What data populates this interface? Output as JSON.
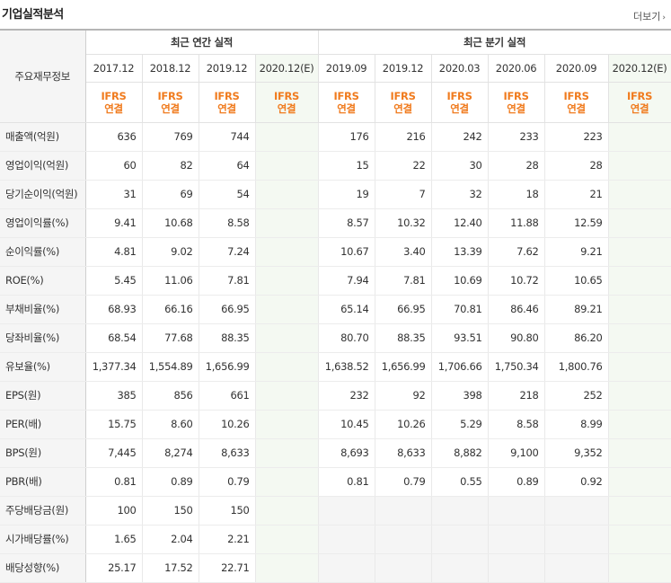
{
  "header": {
    "title": "기업실적분석",
    "more_label": "더보기"
  },
  "columns": {
    "row_header_label": "주요재무정보",
    "annual_group_label": "최근 연간 실적",
    "quarterly_group_label": "최근 분기 실적",
    "annual_periods": [
      "2017.12",
      "2018.12",
      "2019.12",
      "2020.12(E)"
    ],
    "quarterly_periods": [
      "2019.09",
      "2019.12",
      "2020.03",
      "2020.06",
      "2020.09",
      "2020.12(E)"
    ],
    "basis_line1": "IFRS",
    "basis_line2": "연결"
  },
  "rows": [
    {
      "label": "매출액(억원)",
      "annual": [
        "636",
        "769",
        "744",
        ""
      ],
      "quarterly": [
        "176",
        "216",
        "242",
        "233",
        "223",
        ""
      ]
    },
    {
      "label": "영업이익(억원)",
      "annual": [
        "60",
        "82",
        "64",
        ""
      ],
      "quarterly": [
        "15",
        "22",
        "30",
        "28",
        "28",
        ""
      ]
    },
    {
      "label": "당기순이익(억원)",
      "annual": [
        "31",
        "69",
        "54",
        ""
      ],
      "quarterly": [
        "19",
        "7",
        "32",
        "18",
        "21",
        ""
      ]
    },
    {
      "label": "영업이익률(%)",
      "annual": [
        "9.41",
        "10.68",
        "8.58",
        ""
      ],
      "quarterly": [
        "8.57",
        "10.32",
        "12.40",
        "11.88",
        "12.59",
        ""
      ]
    },
    {
      "label": "순이익률(%)",
      "annual": [
        "4.81",
        "9.02",
        "7.24",
        ""
      ],
      "quarterly": [
        "10.67",
        "3.40",
        "13.39",
        "7.62",
        "9.21",
        ""
      ]
    },
    {
      "label": "ROE(%)",
      "annual": [
        "5.45",
        "11.06",
        "7.81",
        ""
      ],
      "quarterly": [
        "7.94",
        "7.81",
        "10.69",
        "10.72",
        "10.65",
        ""
      ]
    },
    {
      "label": "부채비율(%)",
      "annual": [
        "68.93",
        "66.16",
        "66.95",
        ""
      ],
      "quarterly": [
        "65.14",
        "66.95",
        "70.81",
        "86.46",
        "89.21",
        ""
      ]
    },
    {
      "label": "당좌비율(%)",
      "annual": [
        "68.54",
        "77.68",
        "88.35",
        ""
      ],
      "quarterly": [
        "80.70",
        "88.35",
        "93.51",
        "90.80",
        "86.20",
        ""
      ]
    },
    {
      "label": "유보율(%)",
      "annual": [
        "1,377.34",
        "1,554.89",
        "1,656.99",
        ""
      ],
      "quarterly": [
        "1,638.52",
        "1,656.99",
        "1,706.66",
        "1,750.34",
        "1,800.76",
        ""
      ]
    },
    {
      "label": "EPS(원)",
      "annual": [
        "385",
        "856",
        "661",
        ""
      ],
      "quarterly": [
        "232",
        "92",
        "398",
        "218",
        "252",
        ""
      ]
    },
    {
      "label": "PER(배)",
      "annual": [
        "15.75",
        "8.60",
        "10.26",
        ""
      ],
      "quarterly": [
        "10.45",
        "10.26",
        "5.29",
        "8.58",
        "8.99",
        ""
      ]
    },
    {
      "label": "BPS(원)",
      "annual": [
        "7,445",
        "8,274",
        "8,633",
        ""
      ],
      "quarterly": [
        "8,693",
        "8,633",
        "8,882",
        "9,100",
        "9,352",
        ""
      ]
    },
    {
      "label": "PBR(배)",
      "annual": [
        "0.81",
        "0.89",
        "0.79",
        ""
      ],
      "quarterly": [
        "0.81",
        "0.79",
        "0.55",
        "0.89",
        "0.92",
        ""
      ]
    },
    {
      "label": "주당배당금(원)",
      "annual": [
        "100",
        "150",
        "150",
        ""
      ],
      "quarterly": [
        "",
        "",
        "",
        "",
        "",
        ""
      ]
    },
    {
      "label": "시가배당률(%)",
      "annual": [
        "1.65",
        "2.04",
        "2.21",
        ""
      ],
      "quarterly": [
        "",
        "",
        "",
        "",
        "",
        ""
      ]
    },
    {
      "label": "배당성향(%)",
      "annual": [
        "25.17",
        "17.52",
        "22.71",
        ""
      ],
      "quarterly": [
        "",
        "",
        "",
        "",
        "",
        ""
      ]
    }
  ]
}
